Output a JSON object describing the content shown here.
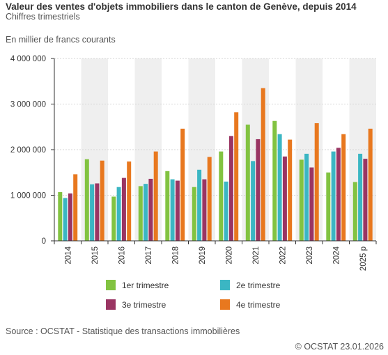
{
  "header": {
    "title": "Valeur des ventes d'objets immobiliers dans le canton de Genève, depuis 2014",
    "subtitle": "Chiffres trimestriels",
    "unit_label": "En millier de francs courants"
  },
  "footer": {
    "source": "Source : OCSTAT - Statistique des transactions immobilières",
    "credit": "© OCSTAT 23.01.2026"
  },
  "colors": {
    "q1": "#82c341",
    "q2": "#3bb6c3",
    "q3": "#9a3563",
    "q4": "#e8781f",
    "grid": "#d6d6d6",
    "band": "#efefef",
    "axis": "#333333"
  },
  "chart_data": {
    "type": "bar",
    "categories": [
      "2014",
      "2015",
      "2016",
      "2017",
      "2018",
      "2019",
      "2020",
      "2021",
      "2022",
      "2023",
      "2024",
      "2025 p"
    ],
    "ylim": [
      0,
      4000000
    ],
    "yticks": [
      0,
      1000000,
      2000000,
      3000000,
      4000000
    ],
    "ytick_labels": [
      "0",
      "1 000 000",
      "2 000 000",
      "3 000 000",
      "4 000 000"
    ],
    "grid": true,
    "legend_position": "bottom",
    "series": [
      {
        "name": "1er trimestre",
        "color_key": "q1",
        "values": [
          1070000,
          1790000,
          970000,
          1200000,
          1530000,
          1180000,
          1960000,
          2550000,
          2630000,
          1780000,
          1500000,
          1290000
        ]
      },
      {
        "name": "2e trimestre",
        "color_key": "q2",
        "values": [
          940000,
          1240000,
          1180000,
          1250000,
          1350000,
          1560000,
          1300000,
          1750000,
          2340000,
          1910000,
          1960000,
          1910000
        ]
      },
      {
        "name": "3e trimestre",
        "color_key": "q3",
        "values": [
          1040000,
          1260000,
          1380000,
          1360000,
          1320000,
          1350000,
          2300000,
          2230000,
          1850000,
          1610000,
          2040000,
          1800000
        ]
      },
      {
        "name": "4e trimestre",
        "color_key": "q4",
        "values": [
          1460000,
          1760000,
          1740000,
          1960000,
          2460000,
          1840000,
          2820000,
          3350000,
          2220000,
          2580000,
          2340000,
          2460000
        ]
      }
    ]
  }
}
